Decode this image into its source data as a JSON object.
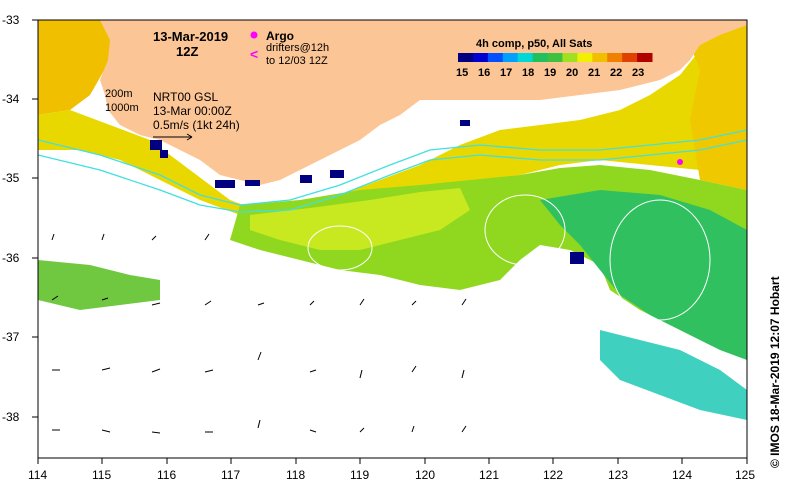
{
  "header": {
    "date": "13-Mar-2019",
    "hour": "12Z"
  },
  "legend": {
    "argo_label": "Argo",
    "drifters_line1": "drifters@12h",
    "drifters_line2": "to 12/03 12Z",
    "composite_title": "4h comp, p50, All Sats",
    "colorbar_ticks": [
      "15",
      "16",
      "17",
      "18",
      "19",
      "20",
      "21",
      "22",
      "23"
    ],
    "colorbar_colors": [
      "#000080",
      "#0000d0",
      "#0050ff",
      "#00a0ff",
      "#00d8d8",
      "#20c060",
      "#40c040",
      "#a0e020",
      "#f0f000",
      "#f0c000",
      "#f08000",
      "#e04000",
      "#b00000"
    ]
  },
  "annotations": {
    "depth_200": "200m",
    "depth_1000": "1000m",
    "product": "NRT00 GSL",
    "product_time": "13-Mar 00:00Z",
    "scale": "0.5m/s (1kt 24h)"
  },
  "axes": {
    "x_ticks": [
      "114",
      "115",
      "116",
      "117",
      "118",
      "119",
      "120",
      "121",
      "122",
      "123",
      "124",
      "125"
    ],
    "y_ticks": [
      "-33",
      "-34",
      "-35",
      "-36",
      "-37",
      "-38"
    ]
  },
  "credit": "© IMOS 18-Mar-2019 12:07 Hobart",
  "colors": {
    "land": "#fcc595",
    "ocean_blank": "#ffffff",
    "isobath": "#40e0e0",
    "argo": "#ff00ff"
  }
}
